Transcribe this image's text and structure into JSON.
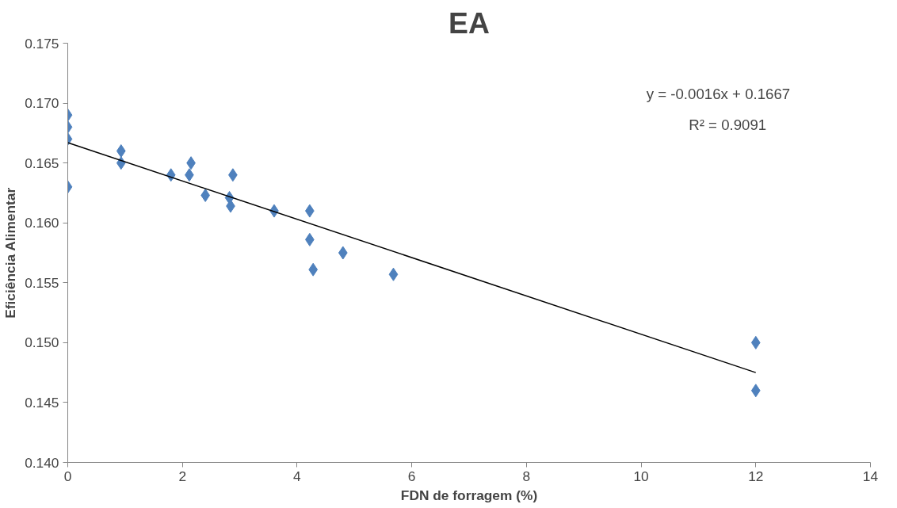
{
  "chart_data": {
    "type": "scatter",
    "title": "EA",
    "xlabel": "FDN de forragem (%)",
    "ylabel": "Eficiência Alimentar",
    "xlim": [
      0,
      14
    ],
    "xticks": [
      0,
      2,
      4,
      6,
      8,
      10,
      12,
      14
    ],
    "ylim": [
      0.14,
      0.175
    ],
    "yticks": [
      {
        "value": 0.14,
        "label": "0.140"
      },
      {
        "value": 0.145,
        "label": "0.145"
      },
      {
        "value": 0.15,
        "label": "0.150"
      },
      {
        "value": 0.155,
        "label": "0.155"
      },
      {
        "value": 0.16,
        "label": "0.160"
      },
      {
        "value": 0.165,
        "label": "0.165"
      },
      {
        "value": 0.17,
        "label": "0.170"
      },
      {
        "value": 0.175,
        "label": "0.175"
      }
    ],
    "grid": false,
    "annotations": [
      "y = -0.0016x + 0.1667",
      "R² = 0.9091"
    ],
    "series": [
      {
        "marker": "diamond",
        "color": "#4f81bd",
        "x": [
          0,
          0,
          0,
          0,
          0.93,
          0.93,
          1.8,
          2.12,
          2.15,
          2.4,
          2.82,
          2.84,
          2.88,
          3.6,
          4.22,
          4.22,
          4.28,
          4.8,
          5.68,
          12,
          12
        ],
        "values": [
          0.169,
          0.168,
          0.167,
          0.163,
          0.166,
          0.165,
          0.164,
          0.164,
          0.165,
          0.1623,
          0.1621,
          0.1614,
          0.164,
          0.161,
          0.161,
          0.1586,
          0.1561,
          0.1575,
          0.1557,
          0.15,
          0.146
        ]
      },
      {
        "type": "line",
        "color": "#000000",
        "x": [
          0,
          12
        ],
        "values": [
          0.1667,
          0.1475
        ],
        "line_style": "solid"
      }
    ]
  }
}
